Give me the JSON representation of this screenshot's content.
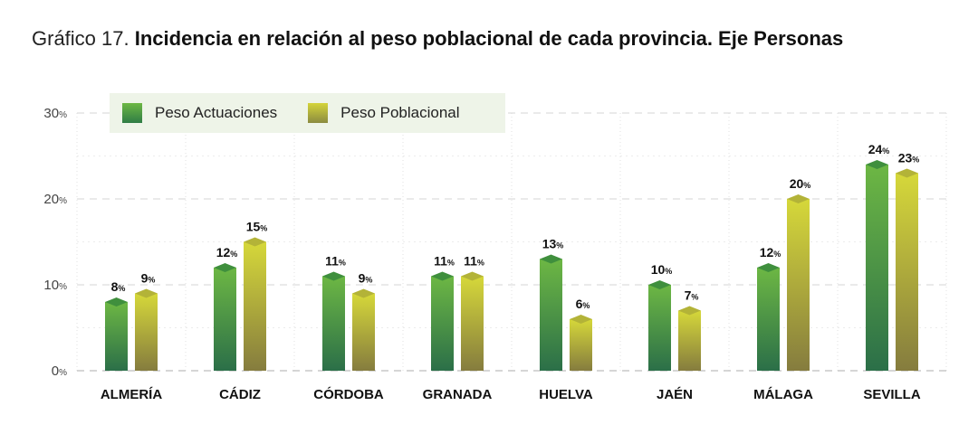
{
  "title": {
    "prefix": "Gráfico 17.",
    "main": "Incidencia en relación al peso poblacional de cada provincia. Eje Personas"
  },
  "legend": {
    "items": [
      {
        "label": "Peso Actuaciones",
        "color": "#4e9d3f"
      },
      {
        "label": "Peso Poblacional",
        "color": "#b8b83a"
      }
    ]
  },
  "chart_data": {
    "type": "bar",
    "categories": [
      "ALMERÍA",
      "CÁDIZ",
      "CÓRDOBA",
      "GRANADA",
      "HUELVA",
      "JAÉN",
      "MÁLAGA",
      "SEVILLA"
    ],
    "series": [
      {
        "name": "Peso Actuaciones",
        "values": [
          8,
          12,
          11,
          11,
          13,
          10,
          12,
          24
        ],
        "display_values": [
          8,
          12,
          11,
          11,
          13,
          10,
          12,
          24
        ],
        "color_top": "#6db744",
        "color_bottom": "#2b6f48"
      },
      {
        "name": "Peso Poblacional",
        "values": [
          9,
          15,
          9,
          11,
          6,
          7,
          20,
          23
        ],
        "display_values": [
          9,
          15,
          9,
          11,
          6,
          7,
          20,
          23
        ],
        "color_top": "#d6d83a",
        "color_bottom": "#857c3e"
      }
    ],
    "value_suffix": "%",
    "yticks": [
      0,
      10,
      20,
      30
    ],
    "ytick_suffix": "%",
    "ylim": [
      0,
      30
    ],
    "grid": true,
    "legend_position": "top-left",
    "xlabel": "",
    "ylabel": ""
  }
}
